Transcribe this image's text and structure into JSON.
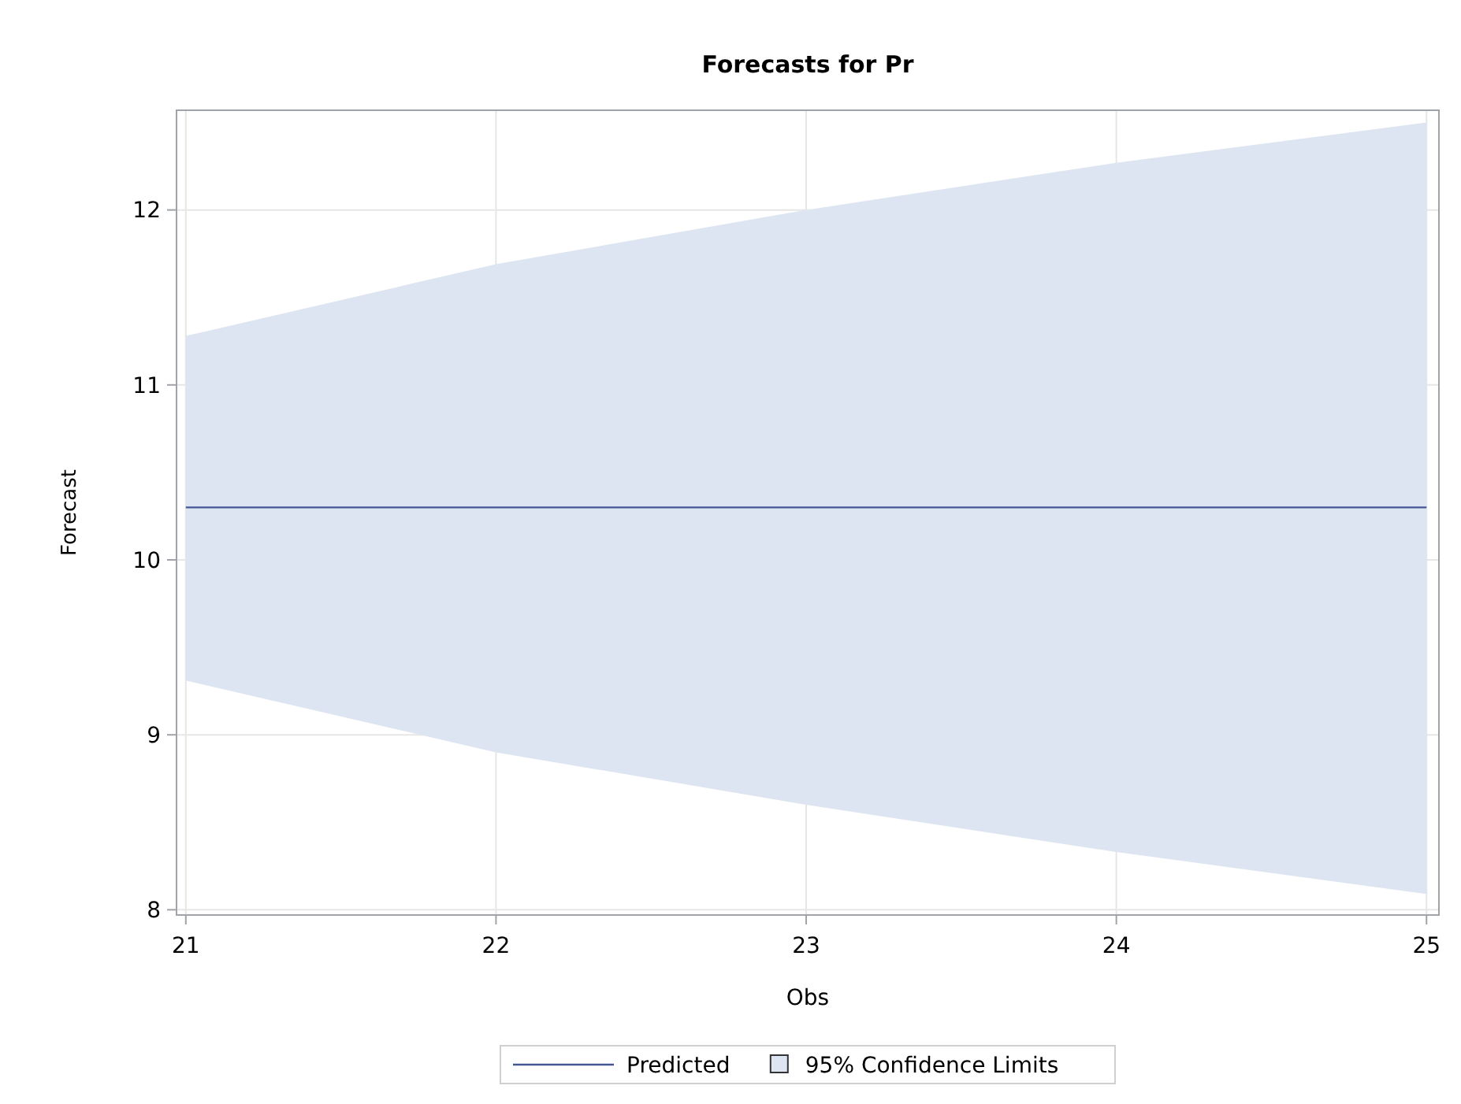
{
  "chart_data": {
    "type": "line",
    "title": "Forecasts for Pr",
    "xlabel": "Obs",
    "ylabel": "Forecast",
    "x": [
      21,
      22,
      23,
      24,
      25
    ],
    "series": [
      {
        "name": "Predicted",
        "color": "#445694",
        "values": [
          10.3,
          10.3,
          10.3,
          10.3,
          10.3
        ]
      },
      {
        "name": "95% Confidence Limits",
        "type": "area",
        "color": "#dce5f1",
        "values": [
          null,
          null,
          null,
          null,
          null
        ],
        "lower": [
          9.31,
          8.9,
          8.6,
          8.33,
          8.09
        ],
        "upper": [
          11.28,
          11.69,
          12.0,
          12.27,
          12.5
        ]
      }
    ],
    "xlim": [
      20.97,
      25.04
    ],
    "xticks": [
      21,
      22,
      23,
      24,
      25
    ],
    "ylim": [
      7.97,
      12.57
    ],
    "yticks": [
      8,
      9,
      10,
      11,
      12
    ],
    "grid": true,
    "legend": "bottom"
  }
}
